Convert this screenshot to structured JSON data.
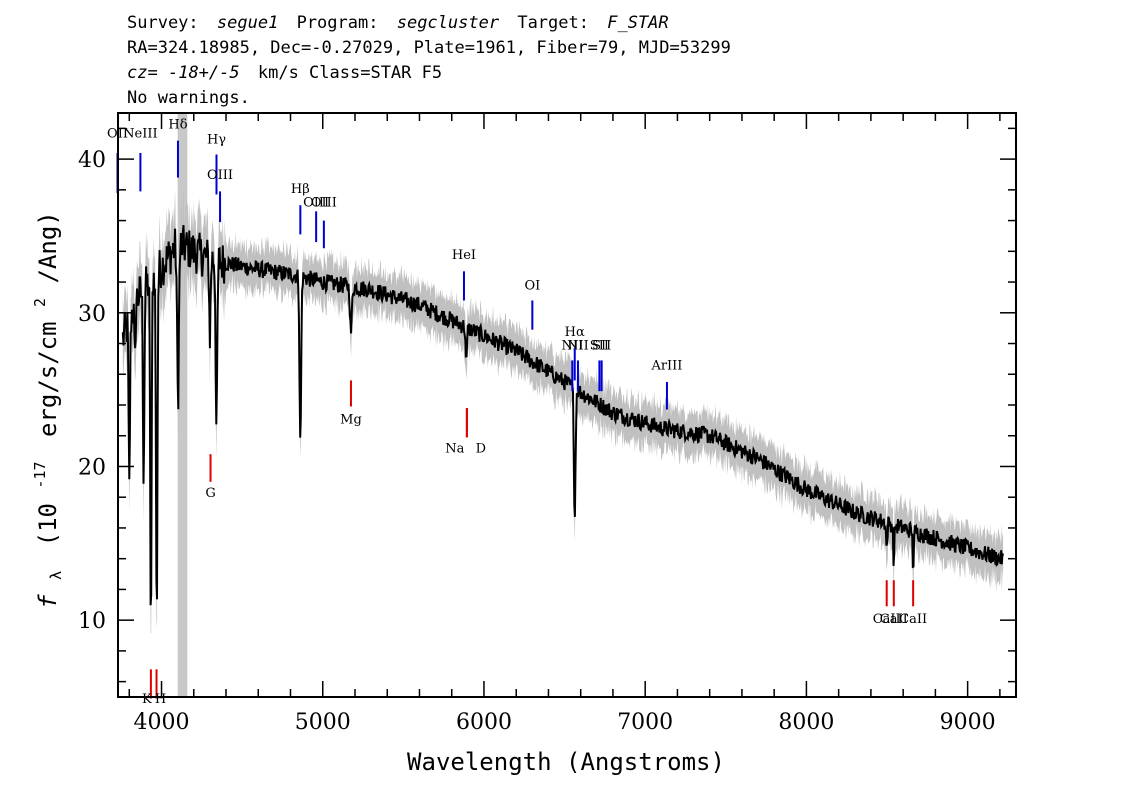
{
  "header": {
    "survey_label": "Survey:",
    "survey": "segue1",
    "program_label": "Program:",
    "program": "segcluster",
    "target_label": "Target:",
    "target": "F_STAR",
    "line2": "RA=324.18985, Dec=-0.27029, Plate=1961, Fiber=79, MJD=53299",
    "redshift_prefix": "cz=",
    "redshift": "-18+/-5",
    "redshift_suffix": "km/s Class=STAR F5",
    "warnings": "No warnings."
  },
  "chart_data": {
    "type": "line",
    "xlabel": "Wavelength (Angstroms)",
    "ylabel_symbol": "f",
    "ylabel_sub": "λ",
    "ylabel_rest": "(10",
    "ylabel_exp": "-17",
    "ylabel_units": "erg/s/cm",
    "ylabel_exp2": "2",
    "ylabel_end": "/Ang)",
    "xlim": [
      3730,
      9300
    ],
    "ylim": [
      5,
      43
    ],
    "x_ticks": [
      4000,
      5000,
      6000,
      7000,
      8000,
      9000
    ],
    "x_tick_labels": [
      "4000",
      "5000",
      "6000",
      "7000",
      "8000",
      "9000"
    ],
    "y_ticks": [
      10,
      20,
      30,
      40
    ],
    "y_tick_labels": [
      "10",
      "20",
      "30",
      "40"
    ],
    "masked_region": [
      4100,
      4160
    ],
    "colors": {
      "flux": "#000000",
      "error_band": "#c0c0c0",
      "emission_line": "#0000d0",
      "absorption_line": "#e00000",
      "mask": "#c8c8c8"
    },
    "continuum": [
      {
        "x": 3750,
        "y": 28
      },
      {
        "x": 3850,
        "y": 31
      },
      {
        "x": 4000,
        "y": 33
      },
      {
        "x": 4100,
        "y": 34.5
      },
      {
        "x": 4300,
        "y": 33.5
      },
      {
        "x": 4500,
        "y": 33
      },
      {
        "x": 4800,
        "y": 32.5
      },
      {
        "x": 5000,
        "y": 32
      },
      {
        "x": 5300,
        "y": 31.5
      },
      {
        "x": 5600,
        "y": 30.5
      },
      {
        "x": 5900,
        "y": 29
      },
      {
        "x": 6200,
        "y": 27.5
      },
      {
        "x": 6500,
        "y": 25.5
      },
      {
        "x": 6800,
        "y": 23.5
      },
      {
        "x": 7100,
        "y": 22.5
      },
      {
        "x": 7400,
        "y": 22
      },
      {
        "x": 7700,
        "y": 20.5
      },
      {
        "x": 8000,
        "y": 18.5
      },
      {
        "x": 8300,
        "y": 17
      },
      {
        "x": 8600,
        "y": 16
      },
      {
        "x": 8900,
        "y": 15
      },
      {
        "x": 9200,
        "y": 14
      }
    ],
    "absorption_features": [
      {
        "x": 3800,
        "depth": 11,
        "width": 6
      },
      {
        "x": 3835,
        "depth": 4,
        "width": 5
      },
      {
        "x": 3889,
        "depth": 12,
        "width": 6
      },
      {
        "x": 3934,
        "depth": 23,
        "width": 6
      },
      {
        "x": 3970,
        "depth": 23,
        "width": 6
      },
      {
        "x": 4102,
        "depth": 10,
        "width": 8
      },
      {
        "x": 4300,
        "depth": 5,
        "width": 6
      },
      {
        "x": 4341,
        "depth": 11,
        "width": 7
      },
      {
        "x": 4861,
        "depth": 11,
        "width": 7
      },
      {
        "x": 5175,
        "depth": 3,
        "width": 8
      },
      {
        "x": 5890,
        "depth": 2.5,
        "width": 6
      },
      {
        "x": 6563,
        "depth": 8.5,
        "width": 7
      },
      {
        "x": 8498,
        "depth": 1.8,
        "width": 5
      },
      {
        "x": 8542,
        "depth": 2.5,
        "width": 5
      },
      {
        "x": 8662,
        "depth": 2.3,
        "width": 5
      }
    ],
    "emission_lines": [
      {
        "label": "OII",
        "x": 3727,
        "ticky": [
          40.4,
          37.8
        ],
        "labely": 41.4
      },
      {
        "label": "NeIII",
        "x": 3869,
        "ticky": [
          40.4,
          37.9
        ],
        "labely": 41.4
      },
      {
        "label": "Hδ",
        "x": 4102,
        "ticky": [
          41.2,
          38.8
        ],
        "labely": 42.0
      },
      {
        "label": "Hγ",
        "x": 4341,
        "ticky": [
          40.3,
          37.7
        ],
        "labely": 41.0
      },
      {
        "label": "OIII",
        "x": 4363,
        "ticky": [
          37.9,
          35.9
        ],
        "labely": 38.7
      },
      {
        "label": "Hβ",
        "x": 4861,
        "ticky": [
          37.0,
          35.1
        ],
        "labely": 37.8
      },
      {
        "label": "OIII",
        "x": 4959,
        "ticky": [
          36.6,
          34.6
        ],
        "labely": 36.9
      },
      {
        "label": "OIII",
        "x": 5007,
        "ticky": [
          36.0,
          34.2
        ],
        "labely": 36.9
      },
      {
        "label": "HeI",
        "x": 5876,
        "ticky": [
          32.7,
          30.8
        ],
        "labely": 33.5
      },
      {
        "label": "OI",
        "x": 6300,
        "ticky": [
          30.8,
          28.9
        ],
        "labely": 31.5
      },
      {
        "label": "NII",
        "x": 6548,
        "ticky": [
          26.9,
          24.9
        ],
        "labely": 27.6
      },
      {
        "label": "Hα",
        "x": 6563,
        "ticky": [
          27.7,
          25.6
        ],
        "labely": 28.5
      },
      {
        "label": "NII",
        "x": 6583,
        "ticky": [
          26.9,
          24.9
        ],
        "labely": 27.6
      },
      {
        "label": "SII",
        "x": 6716,
        "ticky": [
          26.9,
          24.9
        ],
        "labely": 27.6
      },
      {
        "label": "SII",
        "x": 6730,
        "ticky": [
          26.9,
          24.9
        ],
        "labely": 27.6
      },
      {
        "label": "ArIII",
        "x": 7135,
        "ticky": [
          25.5,
          23.7
        ],
        "labely": 26.3
      }
    ],
    "absorption_lines": [
      {
        "label": "K",
        "x": 3934,
        "ticky": [
          6.8,
          4.9
        ],
        "labely": 4.6
      },
      {
        "label": "H",
        "x": 3969,
        "ticky": [
          6.8,
          4.9
        ],
        "labely": 4.6
      },
      {
        "label": "G",
        "x": 4304,
        "ticky": [
          20.8,
          19.0
        ],
        "labely": 18.0
      },
      {
        "label": "Mg",
        "x": 5175,
        "ticky": [
          25.6,
          23.9
        ],
        "labely": 22.8
      },
      {
        "label": "Na",
        "x": 5894,
        "ticky": [
          23.8,
          21.9
        ],
        "labely": 20.9
      },
      {
        "label": "D",
        "x": 5894,
        "ticky": [
          23.8,
          21.9
        ],
        "labely": 20.9
      },
      {
        "label": "CaII",
        "x": 8498,
        "ticky": [
          12.6,
          10.9
        ],
        "labely": 9.8
      },
      {
        "label": "CaII",
        "x": 8542,
        "ticky": [
          12.6,
          10.9
        ],
        "labely": 9.8
      },
      {
        "label": "CaII",
        "x": 8662,
        "ticky": [
          12.6,
          10.9
        ],
        "labely": 9.8
      }
    ]
  }
}
